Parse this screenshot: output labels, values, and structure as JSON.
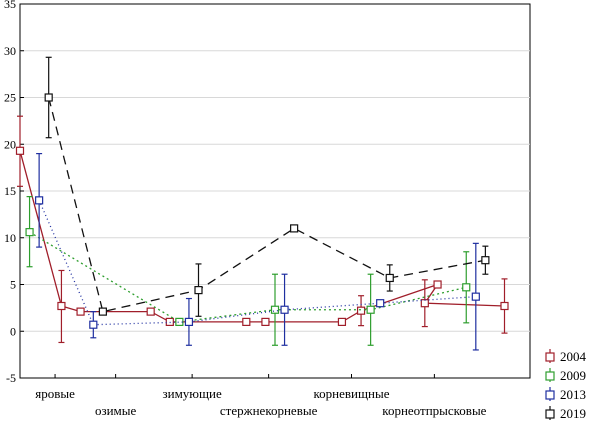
{
  "chart_data": {
    "type": "line",
    "ylim": [
      -5,
      35
    ],
    "yticks": [
      -5,
      0,
      5,
      10,
      15,
      20,
      25,
      30,
      35
    ],
    "grid": true,
    "legend_placement": "bottom-right",
    "categories": [
      "яровые",
      "озимые",
      "зимующие",
      "стержнекорневые",
      "корневищные",
      "корнеотпрысковые"
    ],
    "series": [
      {
        "name": "2004",
        "color": "#a01e2a",
        "dash": "",
        "marker_color": "#a01e2a",
        "points": [
          {
            "x": 0.0,
            "y": 19.3,
            "lo": 15.5,
            "hi": 23.0
          },
          {
            "x": 0.65,
            "y": 2.7,
            "lo": -1.2,
            "hi": 6.5
          },
          {
            "x": 0.95,
            "y": 2.1,
            "lo": 2.1,
            "hi": 2.1
          },
          {
            "x": 2.05,
            "y": 2.1,
            "lo": 2.1,
            "hi": 2.1
          },
          {
            "x": 2.35,
            "y": 1.0,
            "lo": 1.0,
            "hi": 1.0
          },
          {
            "x": 3.55,
            "y": 1.0,
            "lo": 1.0,
            "hi": 1.0
          },
          {
            "x": 3.85,
            "y": 1.0,
            "lo": 1.0,
            "hi": 1.0
          },
          {
            "x": 5.05,
            "y": 1.0,
            "lo": 1.0,
            "hi": 1.0
          },
          {
            "x": 5.35,
            "y": 2.2,
            "lo": 0.6,
            "hi": 3.8
          },
          {
            "x": 6.55,
            "y": 5.0,
            "lo": 5.0,
            "hi": 5.0
          },
          {
            "x": 6.35,
            "y": 3.0,
            "lo": 0.5,
            "hi": 5.5
          },
          {
            "x": 7.6,
            "y": 2.7,
            "lo": -0.2,
            "hi": 5.6
          }
        ]
      },
      {
        "name": "2009",
        "color": "#2e9e2e",
        "dash": "2,3",
        "marker_color": "#2e9e2e",
        "points": [
          {
            "x": 0.15,
            "y": 10.6,
            "lo": 6.9,
            "hi": 14.4
          },
          {
            "x": 2.5,
            "y": 1.0,
            "lo": 1.0,
            "hi": 1.0
          },
          {
            "x": 4.0,
            "y": 2.3,
            "lo": -1.5,
            "hi": 6.1
          },
          {
            "x": 5.5,
            "y": 2.3,
            "lo": -1.5,
            "hi": 6.1
          },
          {
            "x": 7.0,
            "y": 4.7,
            "lo": 0.9,
            "hi": 8.5
          }
        ]
      },
      {
        "name": "2013",
        "color": "#1f2fa0",
        "dash": "1,3",
        "marker_color": "#1f2fa0",
        "points": [
          {
            "x": 0.3,
            "y": 14.0,
            "lo": 9.0,
            "hi": 19.0
          },
          {
            "x": 1.15,
            "y": 0.7,
            "lo": -0.7,
            "hi": 2.1
          },
          {
            "x": 2.65,
            "y": 1.0,
            "lo": -1.5,
            "hi": 3.5
          },
          {
            "x": 4.15,
            "y": 2.3,
            "lo": -1.5,
            "hi": 6.1
          },
          {
            "x": 5.65,
            "y": 3.0,
            "lo": 3.0,
            "hi": 3.0
          },
          {
            "x": 7.15,
            "y": 3.7,
            "lo": -2.0,
            "hi": 9.4
          }
        ]
      },
      {
        "name": "2019",
        "color": "#111111",
        "dash": "9,6",
        "marker_color": "#111111",
        "points": [
          {
            "x": 0.45,
            "y": 25.0,
            "lo": 20.7,
            "hi": 29.3
          },
          {
            "x": 1.3,
            "y": 2.1,
            "lo": 2.1,
            "hi": 2.1
          },
          {
            "x": 2.8,
            "y": 4.4,
            "lo": 1.6,
            "hi": 7.2
          },
          {
            "x": 4.3,
            "y": 11.0,
            "lo": 11.0,
            "hi": 11.0
          },
          {
            "x": 5.8,
            "y": 5.7,
            "lo": 4.3,
            "hi": 7.1
          },
          {
            "x": 7.3,
            "y": 7.6,
            "lo": 6.1,
            "hi": 9.1
          }
        ]
      }
    ]
  }
}
